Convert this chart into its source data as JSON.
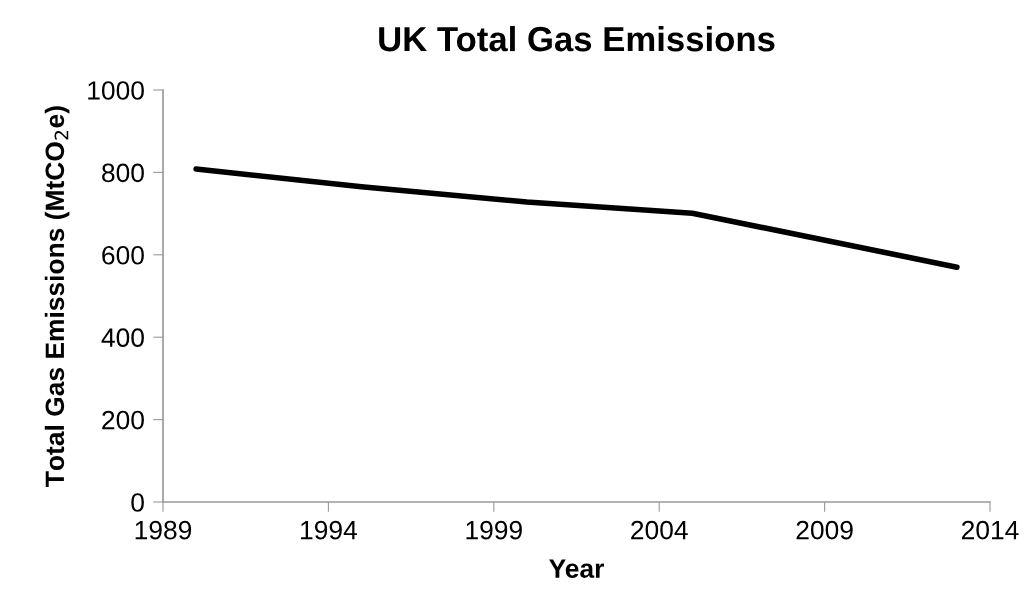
{
  "chart_data": {
    "type": "line",
    "title": "UK Total Gas Emissions",
    "xlabel": "Year",
    "ylabel": "Total Gas Emissions (MtCO$_{2}$e)",
    "x": [
      1990,
      1995,
      2000,
      2005,
      2013
    ],
    "series": [
      {
        "color": "#000000",
        "values": [
          808,
          765,
          728,
          701,
          570
        ]
      }
    ],
    "xlim": [
      1989,
      2014
    ],
    "xticks": [
      1989,
      1994,
      1999,
      2004,
      2009,
      2014
    ],
    "ylim": [
      0,
      1000
    ],
    "yticks": [
      0,
      200,
      400,
      600,
      800,
      1000
    ],
    "grid": false,
    "marker": "none",
    "line_style": "solid"
  }
}
